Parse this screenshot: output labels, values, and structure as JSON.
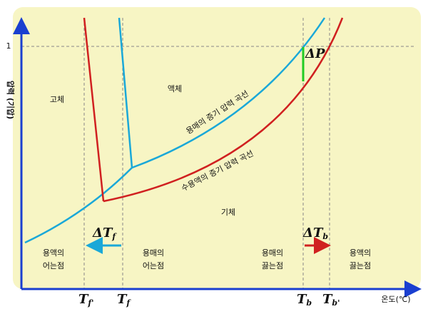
{
  "y_axis_label": "압력 (기압)",
  "y_tick": "1",
  "x_axis_label": "온도(℃)",
  "regions": {
    "solid": "고체",
    "liquid": "액체",
    "gas": "기체"
  },
  "curves": {
    "solvent": "용매의 증기 압력 곡선",
    "solution": "수용액의 증기 압력 곡선"
  },
  "delta_p": "ΔP",
  "delta_tf": {
    "main": "ΔT",
    "sub": "f"
  },
  "delta_tb": {
    "main": "ΔT",
    "sub": "b"
  },
  "notes": {
    "solution_freezing": [
      "용액의",
      "어는점"
    ],
    "solvent_freezing": [
      "용매의",
      "어는점"
    ],
    "solvent_boiling": [
      "용매의",
      "끓는점"
    ],
    "solution_boiling": [
      "용액의",
      "끓는점"
    ]
  },
  "x_marks": [
    {
      "main": "T",
      "sub": "f'"
    },
    {
      "main": "T",
      "sub": "f"
    },
    {
      "main": "T",
      "sub": "b"
    },
    {
      "main": "T",
      "sub": "b'"
    }
  ]
}
